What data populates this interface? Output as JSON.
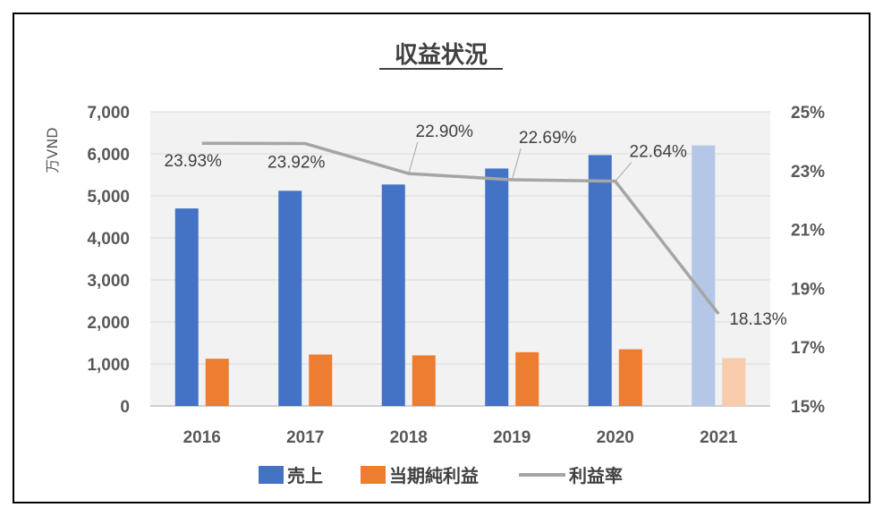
{
  "chart_data": {
    "type": "bar",
    "title": "収益状況",
    "ylabel": "万VND",
    "ylim": [
      0,
      7000
    ],
    "y2lim": [
      15,
      25
    ],
    "y_ticks": [
      "0",
      "1,000",
      "2,000",
      "3,000",
      "4,000",
      "5,000",
      "6,000",
      "7,000"
    ],
    "y_tick_values": [
      0,
      1000,
      2000,
      3000,
      4000,
      5000,
      6000,
      7000
    ],
    "y2_ticks": [
      "15%",
      "17%",
      "19%",
      "21%",
      "23%",
      "25%"
    ],
    "y2_tick_values": [
      15,
      17,
      19,
      21,
      23,
      25
    ],
    "categories": [
      "2016",
      "2017",
      "2018",
      "2019",
      "2020",
      "2021"
    ],
    "series": [
      {
        "name": "売上",
        "type": "bar",
        "axis": "left",
        "color": "#4472C4",
        "light_color": "#B4C7E7",
        "values": [
          4700,
          5120,
          5270,
          5650,
          5970,
          6200
        ]
      },
      {
        "name": "当期純利益",
        "type": "bar",
        "axis": "left",
        "color": "#ED7D31",
        "light_color": "#F8CBAD",
        "values": [
          1125,
          1225,
          1205,
          1280,
          1350,
          1140
        ]
      },
      {
        "name": "利益率",
        "type": "line",
        "axis": "right",
        "color": "#A5A5A5",
        "values": [
          23.93,
          23.92,
          22.9,
          22.69,
          22.64,
          18.13
        ],
        "labels": [
          "23.93%",
          "23.92%",
          "22.90%",
          "22.69%",
          "22.64%",
          "18.13%"
        ]
      }
    ],
    "highlight_last_category_lighter": true,
    "grid": true,
    "plot_background": "#F2F2F2",
    "legend": "bottom"
  }
}
